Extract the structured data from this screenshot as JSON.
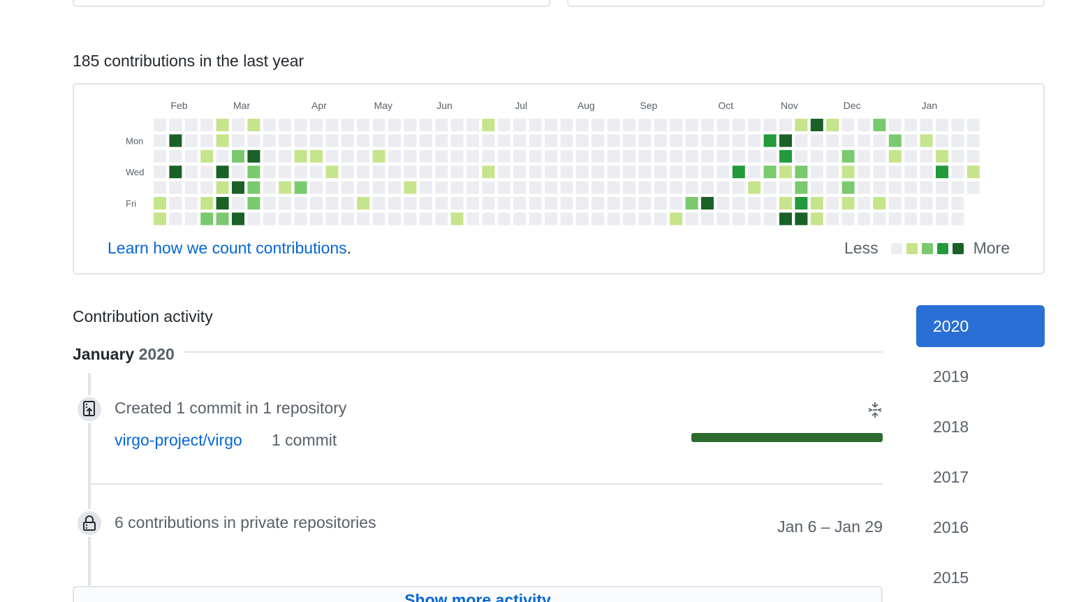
{
  "contrib_heading": "185 contributions in the last year",
  "graph": {
    "months": [
      "Feb",
      "Mar",
      "Apr",
      "May",
      "Jun",
      "Jul",
      "Aug",
      "Sep",
      "Oct",
      "Nov",
      "Dec",
      "Jan"
    ],
    "month_week_index": [
      1,
      5,
      10,
      14,
      18,
      23,
      27,
      31,
      36,
      40,
      44,
      49
    ],
    "day_labels": [
      {
        "row": 1,
        "label": "Mon"
      },
      {
        "row": 3,
        "label": "Wed"
      },
      {
        "row": 5,
        "label": "Fri"
      }
    ],
    "colors": [
      "#ebedf0",
      "#c6e48b",
      "#7bc96f",
      "#239a3b",
      "#196127"
    ],
    "weeks": 53,
    "last_week_days": 5,
    "grid": [
      "00000000000000000000000000000000000000000000000000000",
      "00000000000000000000000000000000000000000000000000000",
      "00000000000000000000000000000000000000000000000000000",
      "00000000000000000000000000000000000000000000000000000",
      "00000000000000000000000000000000000000000000000000000",
      "00000000000000000000000000000000000000000000000000000",
      "00000000000000000000000000000000000000000000000000000"
    ],
    "cells": [
      [
        4,
        0,
        1
      ],
      [
        6,
        0,
        1
      ],
      [
        21,
        0,
        1
      ],
      [
        41,
        0,
        1
      ],
      [
        42,
        0,
        4
      ],
      [
        43,
        0,
        1
      ],
      [
        46,
        0,
        2
      ],
      [
        1,
        1,
        4
      ],
      [
        4,
        1,
        1
      ],
      [
        39,
        1,
        3
      ],
      [
        40,
        1,
        4
      ],
      [
        47,
        1,
        2
      ],
      [
        49,
        1,
        1
      ],
      [
        3,
        2,
        1
      ],
      [
        5,
        2,
        2
      ],
      [
        6,
        2,
        4
      ],
      [
        9,
        2,
        1
      ],
      [
        10,
        2,
        1
      ],
      [
        14,
        2,
        1
      ],
      [
        40,
        2,
        3
      ],
      [
        44,
        2,
        2
      ],
      [
        47,
        2,
        1
      ],
      [
        50,
        2,
        1
      ],
      [
        1,
        3,
        4
      ],
      [
        4,
        3,
        4
      ],
      [
        6,
        3,
        2
      ],
      [
        11,
        3,
        1
      ],
      [
        21,
        3,
        1
      ],
      [
        37,
        3,
        3
      ],
      [
        39,
        3,
        2
      ],
      [
        40,
        3,
        1
      ],
      [
        41,
        3,
        2
      ],
      [
        44,
        3,
        1
      ],
      [
        50,
        3,
        3
      ],
      [
        52,
        3,
        1
      ],
      [
        4,
        4,
        1
      ],
      [
        5,
        4,
        4
      ],
      [
        6,
        4,
        2
      ],
      [
        8,
        4,
        1
      ],
      [
        9,
        4,
        2
      ],
      [
        16,
        4,
        1
      ],
      [
        38,
        4,
        1
      ],
      [
        41,
        4,
        2
      ],
      [
        44,
        4,
        2
      ],
      [
        0,
        5,
        1
      ],
      [
        3,
        5,
        1
      ],
      [
        4,
        5,
        4
      ],
      [
        6,
        5,
        2
      ],
      [
        13,
        5,
        1
      ],
      [
        34,
        5,
        2
      ],
      [
        35,
        5,
        4
      ],
      [
        40,
        5,
        1
      ],
      [
        41,
        5,
        3
      ],
      [
        42,
        5,
        1
      ],
      [
        44,
        5,
        1
      ],
      [
        46,
        5,
        1
      ],
      [
        0,
        6,
        1
      ],
      [
        3,
        6,
        2
      ],
      [
        4,
        6,
        2
      ],
      [
        5,
        6,
        4
      ],
      [
        19,
        6,
        1
      ],
      [
        33,
        6,
        1
      ],
      [
        40,
        6,
        4
      ],
      [
        41,
        6,
        4
      ],
      [
        42,
        6,
        1
      ]
    ],
    "learn_link_text": "Learn how we count contributions",
    "learn_link_suffix": ".",
    "legend_less": "Less",
    "legend_more": "More"
  },
  "activity": {
    "heading": "Contribution activity",
    "month": "January",
    "year": "2020",
    "event1": {
      "title": "Created 1 commit in 1 repository",
      "icon": "repo-push-icon",
      "repo": "virgo-project/virgo",
      "repo_count": "1 commit",
      "progress_fraction": 1.0,
      "bar_color": "#2c6a2d"
    },
    "event2": {
      "title": "6 contributions in private repositories",
      "icon": "lock-icon",
      "date_range": "Jan 6 – Jan 29"
    },
    "show_more": "Show more activity"
  },
  "years": [
    {
      "label": "2020",
      "selected": true
    },
    {
      "label": "2019",
      "selected": false
    },
    {
      "label": "2018",
      "selected": false
    },
    {
      "label": "2017",
      "selected": false
    },
    {
      "label": "2016",
      "selected": false
    },
    {
      "label": "2015",
      "selected": false
    }
  ],
  "accent_color": "#2a6fd6"
}
